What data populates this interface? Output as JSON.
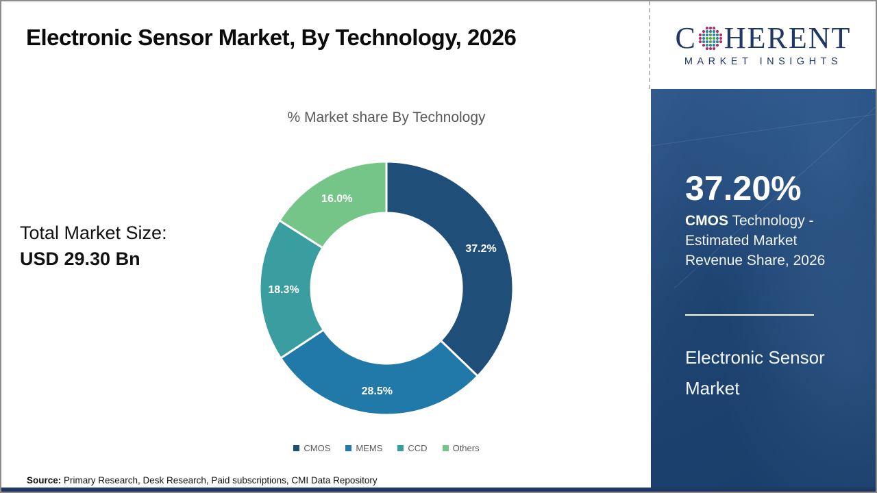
{
  "header": {
    "title": "Electronic Sensor Market, By Technology, 2026"
  },
  "logo": {
    "brand_start": "C",
    "brand_end": "HERENT",
    "tagline": "MARKET INSIGHTS",
    "brand_color": "#1f3864",
    "globe_colors": {
      "inner": "#53a546",
      "middle": "#2a86a3",
      "outer": "#b52d67"
    }
  },
  "chart_data": {
    "type": "pie",
    "donut": true,
    "title": "% Market share By Technology",
    "unit": "%",
    "legend_position": "bottom",
    "categories": [
      "CMOS",
      "MEMS",
      "CCD",
      "Others"
    ],
    "values": [
      37.2,
      28.5,
      18.3,
      16.0
    ],
    "segments": [
      {
        "label": "CMOS",
        "value": 37.2,
        "display": "37.2%",
        "color": "#1f4e79"
      },
      {
        "label": "MEMS",
        "value": 28.5,
        "display": "28.5%",
        "color": "#2079a8"
      },
      {
        "label": "CCD",
        "value": 18.3,
        "display": "18.3%",
        "color": "#3a9ea0"
      },
      {
        "label": "Others",
        "value": 16.0,
        "display": "16.0%",
        "color": "#74c587"
      }
    ]
  },
  "stats": {
    "total_label": "Total Market Size:",
    "total_value": "USD 29.30 Bn"
  },
  "sidebar": {
    "stat_value": "37.20%",
    "stat_desc_bold": "CMOS",
    "stat_desc_rest": " Technology - Estimated Market Revenue Share, 2026",
    "market_name": "Electronic Sensor Market"
  },
  "footer": {
    "source_label": "Source:",
    "source_text": " Primary Research, Desk Research, Paid subscriptions, CMI Data Repository"
  }
}
